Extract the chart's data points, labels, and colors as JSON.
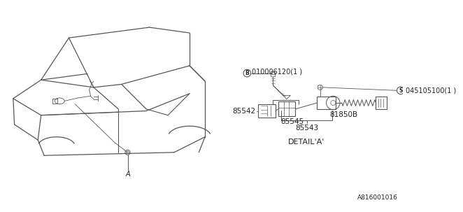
{
  "bg_color": "#ffffff",
  "line_color": "#555555",
  "text_color": "#222222",
  "title_bottom": "DETAIL’A’",
  "part_number_bottom": "A816001016",
  "labels": {
    "B_screw": "010006120(1 )",
    "S_screw": "045105100(1 )",
    "p85542": "85542",
    "p85545": "85545",
    "p85543": "85543",
    "p81850B": "81850B",
    "A_label": "A"
  }
}
